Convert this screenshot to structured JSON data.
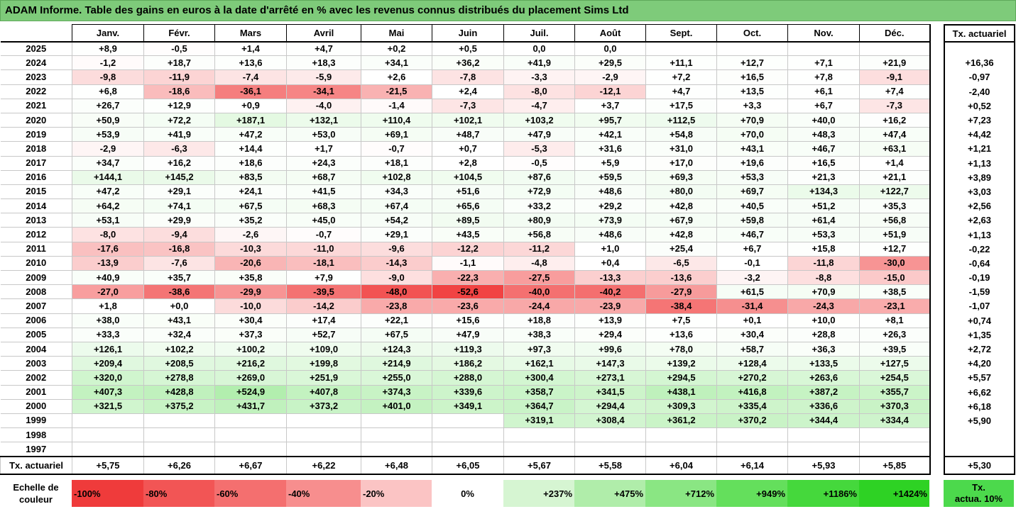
{
  "title": "ADAM Informe. Table des gains en euros à la date d'arrêté en % avec les revenus connus distribués du placement Sims Ltd",
  "months": [
    "Janv.",
    "Févr.",
    "Mars",
    "Avril",
    "Mai",
    "Juin",
    "Juil.",
    "Août",
    "Sept.",
    "Oct.",
    "Nov.",
    "Déc."
  ],
  "tx_header": "Tx. actuariel",
  "rows": [
    {
      "year": "2025",
      "values": [
        "+8,9",
        "-0,5",
        "+1,4",
        "+4,7",
        "+0,2",
        "+0,5",
        "0,0",
        "0,0",
        "",
        "",
        "",
        ""
      ],
      "tx": ""
    },
    {
      "year": "2024",
      "values": [
        "-1,2",
        "+18,7",
        "+13,6",
        "+18,3",
        "+34,1",
        "+36,2",
        "+41,9",
        "+29,5",
        "+11,1",
        "+12,7",
        "+7,1",
        "+21,9"
      ],
      "tx": "+16,36"
    },
    {
      "year": "2023",
      "values": [
        "-9,8",
        "-11,9",
        "-7,4",
        "-5,9",
        "+2,6",
        "-7,8",
        "-3,3",
        "-2,9",
        "+7,2",
        "+16,5",
        "+7,8",
        "-9,1"
      ],
      "tx": "-0,97"
    },
    {
      "year": "2022",
      "values": [
        "+6,8",
        "-18,6",
        "-36,1",
        "-34,1",
        "-21,5",
        "+2,4",
        "-8,0",
        "-12,1",
        "+4,7",
        "+13,5",
        "+6,1",
        "+7,4"
      ],
      "tx": "-2,40"
    },
    {
      "year": "2021",
      "values": [
        "+26,7",
        "+12,9",
        "+0,9",
        "-4,0",
        "-1,4",
        "-7,3",
        "-4,7",
        "+3,7",
        "+17,5",
        "+3,3",
        "+6,7",
        "-7,3"
      ],
      "tx": "+0,52"
    },
    {
      "year": "2020",
      "values": [
        "+50,9",
        "+72,2",
        "+187,1",
        "+132,1",
        "+110,4",
        "+102,1",
        "+103,2",
        "+95,7",
        "+112,5",
        "+70,9",
        "+40,0",
        "+16,2"
      ],
      "tx": "+7,23"
    },
    {
      "year": "2019",
      "values": [
        "+53,9",
        "+41,9",
        "+47,2",
        "+53,0",
        "+69,1",
        "+48,7",
        "+47,9",
        "+42,1",
        "+54,8",
        "+70,0",
        "+48,3",
        "+47,4"
      ],
      "tx": "+4,42"
    },
    {
      "year": "2018",
      "values": [
        "-2,9",
        "-6,3",
        "+14,4",
        "+1,7",
        "-0,7",
        "+0,7",
        "-5,3",
        "+31,6",
        "+31,0",
        "+43,1",
        "+46,7",
        "+63,1"
      ],
      "tx": "+1,21"
    },
    {
      "year": "2017",
      "values": [
        "+34,7",
        "+16,2",
        "+18,6",
        "+24,3",
        "+18,1",
        "+2,8",
        "-0,5",
        "+5,9",
        "+17,0",
        "+19,6",
        "+16,5",
        "+1,4"
      ],
      "tx": "+1,13"
    },
    {
      "year": "2016",
      "values": [
        "+144,1",
        "+145,2",
        "+83,5",
        "+68,7",
        "+102,8",
        "+104,5",
        "+87,6",
        "+59,5",
        "+69,3",
        "+53,3",
        "+21,3",
        "+21,1"
      ],
      "tx": "+3,89"
    },
    {
      "year": "2015",
      "values": [
        "+47,2",
        "+29,1",
        "+24,1",
        "+41,5",
        "+34,3",
        "+51,6",
        "+72,9",
        "+48,6",
        "+80,0",
        "+69,7",
        "+134,3",
        "+122,7"
      ],
      "tx": "+3,03"
    },
    {
      "year": "2014",
      "values": [
        "+64,2",
        "+74,1",
        "+67,5",
        "+68,3",
        "+67,4",
        "+65,6",
        "+33,2",
        "+29,2",
        "+42,8",
        "+40,5",
        "+51,2",
        "+35,3"
      ],
      "tx": "+2,56"
    },
    {
      "year": "2013",
      "values": [
        "+53,1",
        "+29,9",
        "+35,2",
        "+45,0",
        "+54,2",
        "+89,5",
        "+80,9",
        "+73,9",
        "+67,9",
        "+59,8",
        "+61,4",
        "+56,8"
      ],
      "tx": "+2,63"
    },
    {
      "year": "2012",
      "values": [
        "-8,0",
        "-9,4",
        "-2,6",
        "-0,7",
        "+29,1",
        "+43,5",
        "+56,8",
        "+48,6",
        "+42,8",
        "+46,7",
        "+53,3",
        "+51,9"
      ],
      "tx": "+1,13"
    },
    {
      "year": "2011",
      "values": [
        "-17,6",
        "-16,8",
        "-10,3",
        "-11,0",
        "-9,6",
        "-12,2",
        "-11,2",
        "+1,0",
        "+25,4",
        "+6,7",
        "+15,8",
        "+12,7"
      ],
      "tx": "-0,22"
    },
    {
      "year": "2010",
      "values": [
        "-13,9",
        "-7,6",
        "-20,6",
        "-18,1",
        "-14,3",
        "-1,1",
        "-4,8",
        "+0,4",
        "-6,5",
        "-0,1",
        "-11,8",
        "-30,0"
      ],
      "tx": "-0,64"
    },
    {
      "year": "2009",
      "values": [
        "+40,9",
        "+35,7",
        "+35,8",
        "+7,9",
        "-9,0",
        "-22,3",
        "-27,5",
        "-13,3",
        "-13,6",
        "-3,2",
        "-8,8",
        "-15,0"
      ],
      "tx": "-0,19"
    },
    {
      "year": "2008",
      "values": [
        "-27,0",
        "-38,6",
        "-29,9",
        "-39,5",
        "-48,0",
        "-52,6",
        "-40,0",
        "-40,2",
        "-27,9",
        "+61,5",
        "+70,9",
        "+38,5"
      ],
      "tx": "-1,59"
    },
    {
      "year": "2007",
      "values": [
        "+1,8",
        "+0,0",
        "-10,0",
        "-14,2",
        "-23,8",
        "-23,6",
        "-24,4",
        "-23,9",
        "-38,4",
        "-31,4",
        "-24,3",
        "-23,1"
      ],
      "tx": "-1,07"
    },
    {
      "year": "2006",
      "values": [
        "+38,0",
        "+43,1",
        "+30,4",
        "+17,4",
        "+22,1",
        "+15,6",
        "+18,8",
        "+13,9",
        "+7,5",
        "+0,1",
        "+10,0",
        "+8,1"
      ],
      "tx": "+0,74"
    },
    {
      "year": "2005",
      "values": [
        "+33,3",
        "+32,4",
        "+37,3",
        "+52,7",
        "+67,5",
        "+47,9",
        "+38,3",
        "+29,4",
        "+13,6",
        "+30,4",
        "+28,8",
        "+26,3"
      ],
      "tx": "+1,35"
    },
    {
      "year": "2004",
      "values": [
        "+126,1",
        "+102,2",
        "+100,2",
        "+109,0",
        "+124,3",
        "+119,3",
        "+97,3",
        "+99,6",
        "+78,0",
        "+58,7",
        "+36,3",
        "+39,5"
      ],
      "tx": "+2,72"
    },
    {
      "year": "2003",
      "values": [
        "+209,4",
        "+208,5",
        "+216,2",
        "+199,8",
        "+214,9",
        "+186,2",
        "+162,1",
        "+147,3",
        "+139,2",
        "+128,4",
        "+133,5",
        "+127,5"
      ],
      "tx": "+4,20"
    },
    {
      "year": "2002",
      "values": [
        "+320,0",
        "+278,8",
        "+269,0",
        "+251,9",
        "+255,0",
        "+288,0",
        "+300,4",
        "+273,1",
        "+294,5",
        "+270,2",
        "+263,6",
        "+254,5"
      ],
      "tx": "+5,57"
    },
    {
      "year": "2001",
      "values": [
        "+407,3",
        "+428,8",
        "+524,9",
        "+407,8",
        "+374,3",
        "+339,6",
        "+358,7",
        "+341,5",
        "+438,1",
        "+416,8",
        "+387,2",
        "+355,7"
      ],
      "tx": "+6,62"
    },
    {
      "year": "2000",
      "values": [
        "+321,5",
        "+375,2",
        "+431,7",
        "+373,2",
        "+401,0",
        "+349,1",
        "+364,7",
        "+294,4",
        "+309,3",
        "+335,4",
        "+336,6",
        "+370,3"
      ],
      "tx": "+6,18"
    },
    {
      "year": "1999",
      "values": [
        "",
        "",
        "",
        "",
        "",
        "",
        "+319,1",
        "+308,4",
        "+361,2",
        "+370,2",
        "+344,4",
        "+334,4"
      ],
      "tx": "+5,90"
    },
    {
      "year": "1998",
      "values": [
        "",
        "",
        "",
        "",
        "",
        "",
        "",
        "",
        "",
        "",
        "",
        ""
      ],
      "tx": ""
    },
    {
      "year": "1997",
      "values": [
        "",
        "",
        "",
        "",
        "",
        "",
        "",
        "",
        "",
        "",
        "",
        ""
      ],
      "tx": ""
    }
  ],
  "footer": {
    "label": "Tx. actuariel",
    "values": [
      "+5,75",
      "+6,26",
      "+6,67",
      "+6,22",
      "+6,48",
      "+6,05",
      "+5,67",
      "+5,58",
      "+6,04",
      "+6,14",
      "+5,93",
      "+5,85"
    ],
    "tx": "+5,30"
  },
  "legend": {
    "label_line1": "Echelle de",
    "label_line2": "couleur",
    "items": [
      {
        "text": "-100%",
        "color": "#ef3b3b"
      },
      {
        "text": "-80%",
        "color": "#f25555"
      },
      {
        "text": "-60%",
        "color": "#f46f6f"
      },
      {
        "text": "-40%",
        "color": "#f78e8e"
      },
      {
        "text": "-20%",
        "color": "#fbc4c4"
      },
      {
        "text": "0%",
        "color": "#ffffff"
      },
      {
        "text": "+237%",
        "color": "#d6f5d2"
      },
      {
        "text": "+475%",
        "color": "#b0edaa"
      },
      {
        "text": "+712%",
        "color": "#8ae683"
      },
      {
        "text": "+949%",
        "color": "#64df5c"
      },
      {
        "text": "+1186%",
        "color": "#45d83c"
      },
      {
        "text": "+1424%",
        "color": "#2ed224"
      }
    ],
    "tx_line1": "Tx.",
    "tx_line2": "actua. 10%",
    "tx_color": "#4cd94c"
  },
  "colors": {
    "title_bg": "#7ecb7a",
    "negative_max": "#f03a3a",
    "positive_max": "#2ed224"
  }
}
